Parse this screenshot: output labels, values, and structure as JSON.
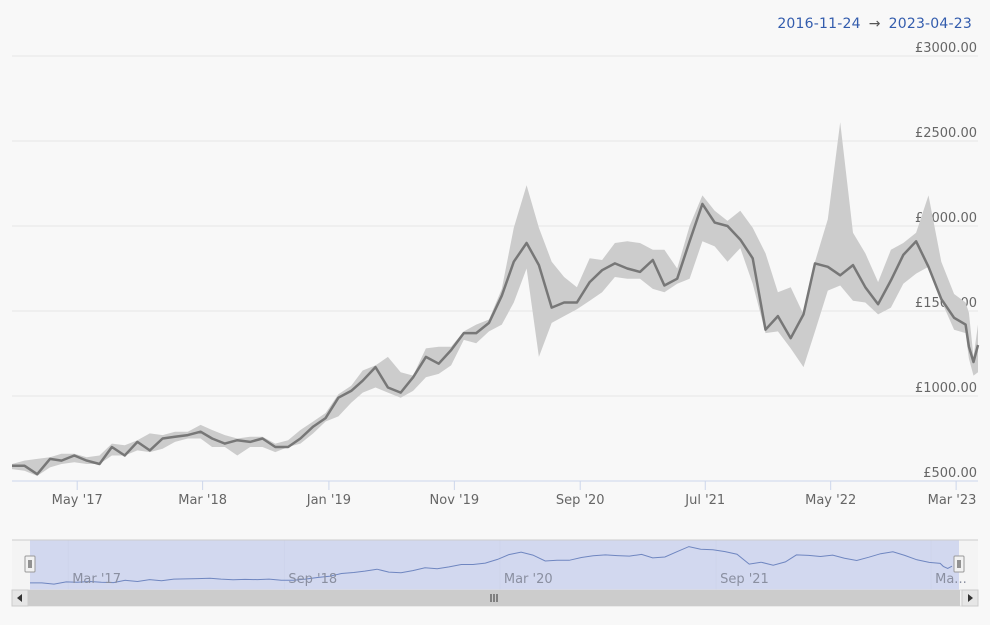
{
  "range": {
    "from": "2016-11-24",
    "arrow": "→",
    "to": "2023-04-23"
  },
  "chart_data": {
    "type": "line",
    "x_range": [
      "2016-11-24",
      "2023-04-23"
    ],
    "ylim": [
      500,
      3000
    ],
    "y_ticks": [
      500,
      1000,
      1500,
      2000,
      2500,
      3000
    ],
    "y_tick_labels": [
      "£500.00",
      "£1000.00",
      "£1500.00",
      "£2000.00",
      "£2500.00",
      "£3000.00"
    ],
    "x_tick_labels": [
      {
        "date": "2017-05-01",
        "label": "May '17"
      },
      {
        "date": "2018-03-01",
        "label": "Mar '18"
      },
      {
        "date": "2019-01-01",
        "label": "Jan '19"
      },
      {
        "date": "2019-11-01",
        "label": "Nov '19"
      },
      {
        "date": "2020-09-01",
        "label": "Sep '20"
      },
      {
        "date": "2021-07-01",
        "label": "Jul '21"
      },
      {
        "date": "2022-05-01",
        "label": "May '22"
      },
      {
        "date": "2023-03-01",
        "label": "Mar '23"
      }
    ],
    "series": [
      {
        "type": "line",
        "color": "#777777",
        "points": [
          [
            "2016-11-24",
            590
          ],
          [
            "2016-12-24",
            590
          ],
          [
            "2017-01-24",
            540
          ],
          [
            "2017-02-24",
            630
          ],
          [
            "2017-03-24",
            620
          ],
          [
            "2017-04-24",
            650
          ],
          [
            "2017-05-24",
            620
          ],
          [
            "2017-06-24",
            600
          ],
          [
            "2017-07-24",
            700
          ],
          [
            "2017-08-24",
            650
          ],
          [
            "2017-09-24",
            730
          ],
          [
            "2017-10-24",
            680
          ],
          [
            "2017-11-24",
            750
          ],
          [
            "2017-12-24",
            760
          ],
          [
            "2018-01-24",
            770
          ],
          [
            "2018-02-24",
            790
          ],
          [
            "2018-03-24",
            750
          ],
          [
            "2018-04-24",
            720
          ],
          [
            "2018-05-24",
            740
          ],
          [
            "2018-06-24",
            730
          ],
          [
            "2018-07-24",
            750
          ],
          [
            "2018-08-24",
            700
          ],
          [
            "2018-09-24",
            700
          ],
          [
            "2018-10-24",
            750
          ],
          [
            "2018-11-24",
            820
          ],
          [
            "2018-12-24",
            870
          ],
          [
            "2019-01-24",
            990
          ],
          [
            "2019-02-24",
            1030
          ],
          [
            "2019-03-24",
            1090
          ],
          [
            "2019-04-24",
            1170
          ],
          [
            "2019-05-24",
            1050
          ],
          [
            "2019-06-24",
            1020
          ],
          [
            "2019-07-24",
            1110
          ],
          [
            "2019-08-24",
            1230
          ],
          [
            "2019-09-24",
            1190
          ],
          [
            "2019-10-24",
            1270
          ],
          [
            "2019-11-24",
            1370
          ],
          [
            "2019-12-24",
            1370
          ],
          [
            "2020-01-24",
            1430
          ],
          [
            "2020-02-24",
            1590
          ],
          [
            "2020-03-24",
            1790
          ],
          [
            "2020-04-24",
            1900
          ],
          [
            "2020-05-24",
            1770
          ],
          [
            "2020-06-24",
            1520
          ],
          [
            "2020-07-24",
            1550
          ],
          [
            "2020-08-24",
            1550
          ],
          [
            "2020-09-24",
            1670
          ],
          [
            "2020-10-24",
            1740
          ],
          [
            "2020-11-24",
            1780
          ],
          [
            "2020-12-24",
            1750
          ],
          [
            "2021-01-24",
            1730
          ],
          [
            "2021-02-24",
            1800
          ],
          [
            "2021-03-24",
            1650
          ],
          [
            "2021-04-24",
            1690
          ],
          [
            "2021-05-24",
            1910
          ],
          [
            "2021-06-24",
            2130
          ],
          [
            "2021-07-24",
            2020
          ],
          [
            "2021-08-24",
            2000
          ],
          [
            "2021-09-24",
            1920
          ],
          [
            "2021-10-24",
            1810
          ],
          [
            "2021-11-24",
            1390
          ],
          [
            "2021-12-24",
            1470
          ],
          [
            "2022-01-24",
            1340
          ],
          [
            "2022-02-24",
            1480
          ],
          [
            "2022-03-24",
            1780
          ],
          [
            "2022-04-24",
            1760
          ],
          [
            "2022-05-24",
            1710
          ],
          [
            "2022-06-24",
            1770
          ],
          [
            "2022-07-24",
            1640
          ],
          [
            "2022-08-24",
            1540
          ],
          [
            "2022-09-24",
            1680
          ],
          [
            "2022-10-24",
            1830
          ],
          [
            "2022-11-24",
            1910
          ],
          [
            "2022-12-24",
            1760
          ],
          [
            "2023-01-24",
            1570
          ],
          [
            "2023-02-24",
            1460
          ],
          [
            "2023-03-24",
            1420
          ],
          [
            "2023-04-01",
            1290
          ],
          [
            "2023-04-12",
            1200
          ],
          [
            "2023-04-23",
            1300
          ]
        ]
      },
      {
        "type": "arearange",
        "color": "#cccccc",
        "points": [
          [
            "2016-11-24",
            570,
            600
          ],
          [
            "2016-12-24",
            560,
            620
          ],
          [
            "2017-01-24",
            530,
            630
          ],
          [
            "2017-02-24",
            580,
            640
          ],
          [
            "2017-03-24",
            600,
            660
          ],
          [
            "2017-04-24",
            610,
            660
          ],
          [
            "2017-05-24",
            600,
            640
          ],
          [
            "2017-06-24",
            600,
            650
          ],
          [
            "2017-07-24",
            650,
            720
          ],
          [
            "2017-08-24",
            650,
            710
          ],
          [
            "2017-09-24",
            680,
            740
          ],
          [
            "2017-10-24",
            670,
            780
          ],
          [
            "2017-11-24",
            690,
            770
          ],
          [
            "2017-12-24",
            730,
            790
          ],
          [
            "2018-01-24",
            750,
            790
          ],
          [
            "2018-02-24",
            750,
            830
          ],
          [
            "2018-03-24",
            700,
            800
          ],
          [
            "2018-04-24",
            700,
            770
          ],
          [
            "2018-05-24",
            650,
            750
          ],
          [
            "2018-06-24",
            700,
            760
          ],
          [
            "2018-07-24",
            700,
            760
          ],
          [
            "2018-08-24",
            670,
            720
          ],
          [
            "2018-09-24",
            700,
            740
          ],
          [
            "2018-10-24",
            720,
            800
          ],
          [
            "2018-11-24",
            780,
            850
          ],
          [
            "2018-12-24",
            850,
            900
          ],
          [
            "2019-01-24",
            880,
            1010
          ],
          [
            "2019-02-24",
            960,
            1060
          ],
          [
            "2019-03-24",
            1020,
            1150
          ],
          [
            "2019-04-24",
            1050,
            1180
          ],
          [
            "2019-05-24",
            1020,
            1230
          ],
          [
            "2019-06-24",
            990,
            1140
          ],
          [
            "2019-07-24",
            1030,
            1120
          ],
          [
            "2019-08-24",
            1110,
            1280
          ],
          [
            "2019-09-24",
            1130,
            1290
          ],
          [
            "2019-10-24",
            1180,
            1290
          ],
          [
            "2019-11-24",
            1330,
            1380
          ],
          [
            "2019-12-24",
            1310,
            1420
          ],
          [
            "2020-01-24",
            1380,
            1450
          ],
          [
            "2020-02-24",
            1420,
            1630
          ],
          [
            "2020-03-24",
            1550,
            1990
          ],
          [
            "2020-04-24",
            1750,
            2240
          ],
          [
            "2020-05-24",
            1230,
            1990
          ],
          [
            "2020-06-24",
            1430,
            1790
          ],
          [
            "2020-07-24",
            1470,
            1700
          ],
          [
            "2020-08-24",
            1510,
            1640
          ],
          [
            "2020-09-24",
            1560,
            1810
          ],
          [
            "2020-10-24",
            1610,
            1800
          ],
          [
            "2020-11-24",
            1700,
            1900
          ],
          [
            "2020-12-24",
            1690,
            1910
          ],
          [
            "2021-01-24",
            1690,
            1900
          ],
          [
            "2021-02-24",
            1630,
            1860
          ],
          [
            "2021-03-24",
            1610,
            1860
          ],
          [
            "2021-04-24",
            1660,
            1750
          ],
          [
            "2021-05-24",
            1690,
            2000
          ],
          [
            "2021-06-24",
            1910,
            2180
          ],
          [
            "2021-07-24",
            1880,
            2090
          ],
          [
            "2021-08-24",
            1790,
            2030
          ],
          [
            "2021-09-24",
            1870,
            2090
          ],
          [
            "2021-10-24",
            1660,
            1990
          ],
          [
            "2021-11-24",
            1370,
            1840
          ],
          [
            "2021-12-24",
            1380,
            1610
          ],
          [
            "2022-01-24",
            1280,
            1640
          ],
          [
            "2022-02-24",
            1170,
            1480
          ],
          [
            "2022-03-24",
            1380,
            1790
          ],
          [
            "2022-04-24",
            1620,
            2040
          ],
          [
            "2022-05-24",
            1650,
            2610
          ],
          [
            "2022-06-24",
            1560,
            1960
          ],
          [
            "2022-07-24",
            1550,
            1840
          ],
          [
            "2022-08-24",
            1480,
            1670
          ],
          [
            "2022-09-24",
            1520,
            1860
          ],
          [
            "2022-10-24",
            1660,
            1900
          ],
          [
            "2022-11-24",
            1720,
            1960
          ],
          [
            "2022-12-24",
            1760,
            2180
          ],
          [
            "2023-01-24",
            1560,
            1790
          ],
          [
            "2023-02-24",
            1390,
            1600
          ],
          [
            "2023-03-24",
            1370,
            1550
          ],
          [
            "2023-04-01",
            1220,
            1490
          ],
          [
            "2023-04-12",
            1120,
            1230
          ],
          [
            "2023-04-23",
            1140,
            1420
          ]
        ]
      }
    ],
    "grid": true,
    "navigator": {
      "x_tick_labels": [
        {
          "date": "2017-03-01",
          "label": "Mar '17"
        },
        {
          "date": "2018-09-01",
          "label": "Sep '18"
        },
        {
          "date": "2020-03-01",
          "label": "Mar '20"
        },
        {
          "date": "2021-09-01",
          "label": "Sep '21"
        },
        {
          "date": "2023-03-01",
          "label": "Ma..."
        }
      ]
    }
  },
  "colors": {
    "mask": "#d6dcf2",
    "nav_line": "#6f86c0",
    "label_blue": "#335cad",
    "scrollbar": "#dddddd"
  },
  "icons": {
    "left_arrow": "left-arrow-icon",
    "right_arrow": "right-arrow-icon",
    "grip": "scrollbar-grip-icon"
  }
}
